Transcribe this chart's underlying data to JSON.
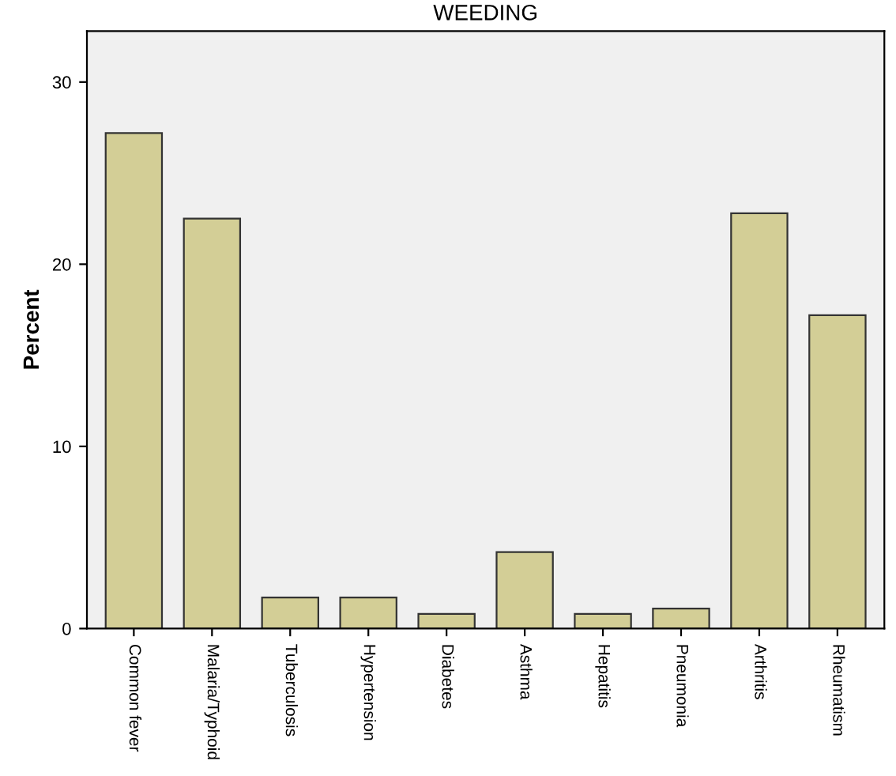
{
  "chart_data": {
    "type": "bar",
    "title": "WEEDING",
    "ylabel": "Percent",
    "categories": [
      "Common fever",
      "Malaria/Typhoid",
      "Tuberculosis",
      "Hypertension",
      "Diabetes",
      "Asthma",
      "Hepatitis",
      "Pneumonia",
      "Arthritis",
      "Rheumatism"
    ],
    "values": [
      27.2,
      22.5,
      1.7,
      1.7,
      0.8,
      4.2,
      0.8,
      1.1,
      22.8,
      17.2
    ],
    "color": "#d3ce96",
    "ylim": [
      0,
      32.8
    ],
    "yticks": [
      0,
      10,
      20,
      30
    ],
    "grid": false
  }
}
